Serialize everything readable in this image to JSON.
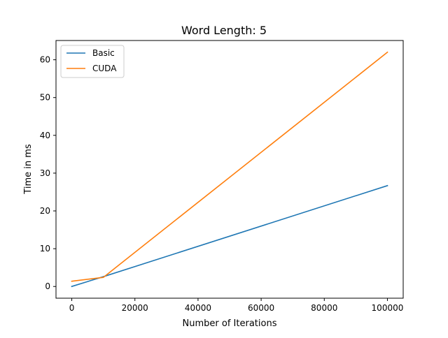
{
  "chart_data": {
    "type": "line",
    "title": "Word Length: 5",
    "xlabel": "Number of Iterations",
    "ylabel": "Time in ms",
    "xlim": [
      -5000,
      105000
    ],
    "ylim": [
      -3.1,
      65.1
    ],
    "xticks": [
      0,
      20000,
      40000,
      60000,
      80000,
      100000
    ],
    "xtick_labels": [
      "0",
      "20000",
      "40000",
      "60000",
      "80000",
      "100000"
    ],
    "yticks": [
      0,
      10,
      20,
      30,
      40,
      50,
      60
    ],
    "ytick_labels": [
      "0",
      "10",
      "20",
      "30",
      "40",
      "50",
      "60"
    ],
    "grid": false,
    "legend_position": "top-left",
    "series": [
      {
        "name": "Basic",
        "color": "#1f77b4",
        "x": [
          0,
          10000,
          100000
        ],
        "y": [
          0.0,
          2.6,
          26.7
        ]
      },
      {
        "name": "CUDA",
        "color": "#ff7f0e",
        "x": [
          0,
          10000,
          100000
        ],
        "y": [
          1.4,
          2.4,
          62.0
        ]
      }
    ]
  }
}
